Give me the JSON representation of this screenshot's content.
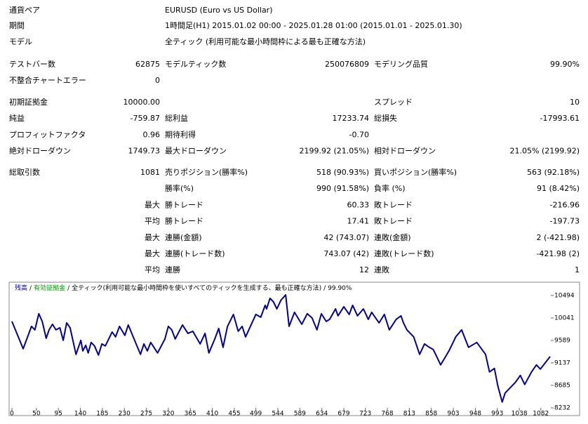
{
  "header": [
    {
      "label": "通貨ペア",
      "value": "EURUSD (Euro vs US Dollar)"
    },
    {
      "label": "期間",
      "value": "1時間足(H1) 2015.01.02 00:00 - 2025.01.28 01:00 (2015.01.01 - 2025.01.30)"
    },
    {
      "label": "モデル",
      "value": "全ティック (利用可能な最小時間枠による最も正確な方法)"
    }
  ],
  "sections": [
    [
      [
        {
          "label": "テストバー数",
          "value": "62875"
        },
        {
          "label": "モデルティック数",
          "value": "250076809"
        },
        {
          "label": "モデリング品質",
          "value": "99.90%"
        }
      ],
      [
        {
          "label": "不整合チャートエラー",
          "value": "0"
        },
        null,
        null
      ]
    ],
    [
      [
        {
          "label": "初期証拠金",
          "value": "10000.00"
        },
        null,
        {
          "label": "スプレッド",
          "value": "10"
        }
      ],
      [
        {
          "label": "純益",
          "value": "-759.87"
        },
        {
          "label": "総利益",
          "value": "17233.74"
        },
        {
          "label": "総損失",
          "value": "-17993.61"
        }
      ],
      [
        {
          "label": "プロフィットファクタ",
          "value": "0.96"
        },
        {
          "label": "期待利得",
          "value": "-0.70"
        },
        null
      ],
      [
        {
          "label": "絶対ドローダウン",
          "value": "1749.73"
        },
        {
          "label": "最大ドローダウン",
          "value": "2199.92 (21.05%)"
        },
        {
          "label": "相対ドローダウン",
          "value": "21.05% (2199.92)"
        }
      ]
    ],
    [
      [
        {
          "label": "総取引数",
          "value": "1081"
        },
        {
          "label": "売りポジション(勝率%)",
          "value": "518 (90.93%)"
        },
        {
          "label": "買いポジション(勝率%)",
          "value": "563 (92.18%)"
        }
      ],
      [
        null,
        {
          "label": "勝率(%)",
          "value": "990 (91.58%)"
        },
        {
          "label": "負率 (%)",
          "value": "91 (8.42%)"
        }
      ],
      [
        {
          "value": "最大"
        },
        {
          "label": "勝トレード",
          "value": "60.33"
        },
        {
          "label": "敗トレード",
          "value": "-216.96"
        }
      ],
      [
        {
          "value": "平均"
        },
        {
          "label": "勝トレード",
          "value": "17.41"
        },
        {
          "label": "敗トレード",
          "value": "-197.73"
        }
      ],
      [
        {
          "value": "最大"
        },
        {
          "label": "連勝(金額)",
          "value": "42 (743.07)"
        },
        {
          "label": "連敗(金額)",
          "value": "2 (-421.98)"
        }
      ],
      [
        {
          "value": "最大"
        },
        {
          "label": "連勝(トレード数)",
          "value": "743.07 (42)"
        },
        {
          "label": "連敗(トレード数)",
          "value": "-421.98 (2)"
        }
      ],
      [
        {
          "value": "平均"
        },
        {
          "label": "連勝",
          "value": "12"
        },
        {
          "label": "連敗",
          "value": "1"
        }
      ]
    ]
  ],
  "chart_data": {
    "type": "line",
    "separator": "/",
    "equity_label": {
      "text": "有効証拠金",
      "color": "#009900"
    },
    "model_label": "全ティック(利用可能な最小時間枠を使いすべてのティックを生成する、最も正確な方法)",
    "quality_label": "99.90%",
    "x": [
      0,
      23,
      40,
      47,
      55,
      62,
      70,
      76,
      83,
      90,
      98,
      105,
      112,
      119,
      131,
      141,
      145,
      151,
      156,
      162,
      169,
      177,
      184,
      191,
      205,
      212,
      220,
      231,
      238,
      248,
      263,
      270,
      277,
      284,
      298,
      313,
      320,
      327,
      334,
      349,
      360,
      370,
      385,
      395,
      403,
      415,
      423,
      432,
      441,
      453,
      463,
      471,
      478,
      499,
      509,
      518,
      521,
      528,
      535,
      542,
      550,
      560,
      567,
      578,
      593,
      604,
      614,
      624,
      633,
      643,
      650,
      662,
      667,
      679,
      690,
      697,
      707,
      719,
      729,
      736,
      751,
      762,
      772,
      786,
      796,
      801,
      808,
      822,
      834,
      844,
      854,
      862,
      877,
      894,
      908,
      920,
      934,
      951,
      969,
      977,
      987,
      994,
      1003,
      1009,
      1030,
      1040,
      1049,
      1063,
      1073,
      1081,
      1101
    ],
    "series": [
      {
        "name": "残高",
        "color": "#000099",
        "values": [
          9970,
          9421,
          9872,
          9801,
          10126,
          9970,
          9632,
          9801,
          9914,
          9801,
          9844,
          9590,
          9942,
          9844,
          9308,
          9590,
          9378,
          9491,
          9336,
          9548,
          9477,
          9294,
          9519,
          9477,
          9759,
          9660,
          9872,
          9689,
          9900,
          9660,
          9308,
          9519,
          9378,
          9548,
          9336,
          9618,
          9872,
          9801,
          9618,
          9900,
          9731,
          9773,
          9519,
          9731,
          9336,
          9618,
          9829,
          9449,
          9872,
          10112,
          9773,
          9872,
          9660,
          10112,
          10055,
          10295,
          10224,
          10436,
          10365,
          10224,
          10394,
          10506,
          9872,
          10154,
          9914,
          10126,
          10041,
          9801,
          10126,
          9970,
          10013,
          10224,
          10083,
          10267,
          10112,
          10295,
          10083,
          10224,
          10013,
          10154,
          9942,
          10112,
          9801,
          10013,
          10083,
          9942,
          9801,
          9660,
          9308,
          9519,
          9449,
          9406,
          9096,
          9378,
          9660,
          9801,
          9449,
          9548,
          9308,
          8955,
          9026,
          8673,
          8349,
          8532,
          8744,
          8885,
          8702,
          8955,
          9096,
          9012,
          9265
        ]
      }
    ],
    "xlim": [
      0,
      1101
    ],
    "ylim": [
      8232,
      10746
    ],
    "xticks": [
      0,
      50,
      95,
      140,
      185,
      230,
      275,
      320,
      365,
      410,
      455,
      499,
      544,
      589,
      634,
      679,
      723,
      768,
      813,
      858,
      903,
      948,
      993,
      1038,
      1082
    ],
    "yticks": [
      8232,
      8685,
      9137,
      9589,
      10041,
      10494
    ]
  }
}
